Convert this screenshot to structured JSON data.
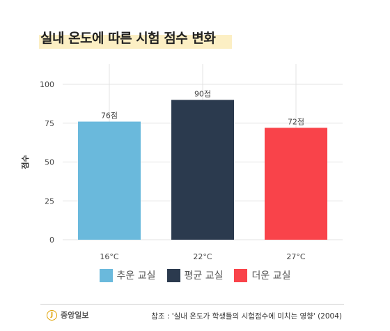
{
  "title": "실내 온도에 따른 시험 점수 변화",
  "chart_data": {
    "type": "bar",
    "categories": [
      "16°C",
      "22°C",
      "27°C"
    ],
    "values": [
      76,
      90,
      72
    ],
    "data_labels": [
      "76점",
      "90점",
      "72점"
    ],
    "colors": [
      "#6ab9dc",
      "#2b3a4e",
      "#f9434a"
    ],
    "ylabel": "점수",
    "ylim": [
      0,
      100
    ],
    "yticks": [
      0,
      25,
      50,
      75,
      100
    ],
    "grid": true
  },
  "legend": [
    {
      "label": "추운 교실",
      "color": "#6ab9dc"
    },
    {
      "label": "평균 교실",
      "color": "#2b3a4e"
    },
    {
      "label": "더운 교실",
      "color": "#f9434a"
    }
  ],
  "footer": {
    "logo_text": "중앙일보",
    "logo_mark": "J",
    "source": "참조 : '실내 온도가 학생들의 시험점수에 미치는 영향' (2004)"
  }
}
